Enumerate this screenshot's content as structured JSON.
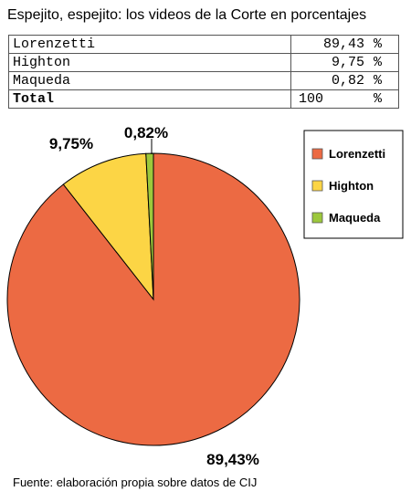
{
  "title": "Espejito, espejito: los videos de la Corte en porcentajes",
  "table": {
    "rows": [
      {
        "name": "Lorenzetti",
        "value": "89,43",
        "unit": "%"
      },
      {
        "name": "Highton",
        "value": "9,75",
        "unit": "%"
      },
      {
        "name": "Maqueda",
        "value": "0,82",
        "unit": "%"
      },
      {
        "name": "Total",
        "value": "100",
        "unit": "%"
      }
    ]
  },
  "chart_data": {
    "type": "pie",
    "categories": [
      "Lorenzetti",
      "Highton",
      "Maqueda"
    ],
    "values": [
      89.43,
      9.75,
      0.82
    ],
    "data_labels": [
      "89,43%",
      "9,75%",
      "0,82%"
    ],
    "colors": [
      "#ec6a43",
      "#fcd545",
      "#9cc83c"
    ],
    "legend": {
      "position": "right",
      "entries": [
        "Lorenzetti",
        "Highton",
        "Maqueda"
      ]
    }
  },
  "source": "Fuente: elaboración propia sobre datos de CIJ"
}
